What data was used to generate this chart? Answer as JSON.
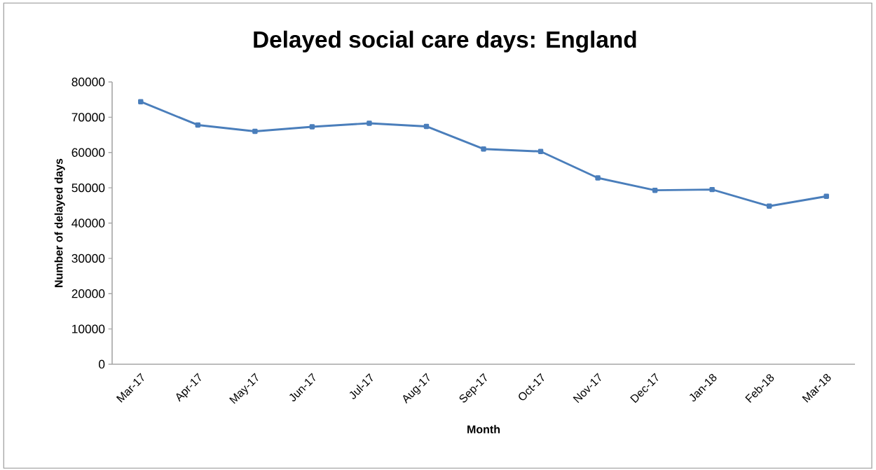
{
  "chart_data": {
    "type": "line",
    "title": "Delayed social care days:  England",
    "xlabel": "Month",
    "ylabel": "Number of delayed days",
    "categories": [
      "Mar-17",
      "Apr-17",
      "May-17",
      "Jun-17",
      "Jul-17",
      "Aug-17",
      "Sep-17",
      "Oct-17",
      "Nov-17",
      "Dec-17",
      "Jan-18",
      "Feb-18",
      "Mar-18"
    ],
    "series": [
      {
        "color": "#4a7ebb",
        "values": [
          74400,
          67800,
          66000,
          67300,
          68300,
          67400,
          61000,
          60300,
          52800,
          49300,
          49500,
          44800,
          47600
        ]
      }
    ],
    "ylim": [
      0,
      80000
    ],
    "yticks": [
      0,
      10000,
      20000,
      30000,
      40000,
      50000,
      60000,
      70000,
      80000
    ],
    "marker": "square",
    "line_style": "solid",
    "grid": false
  }
}
